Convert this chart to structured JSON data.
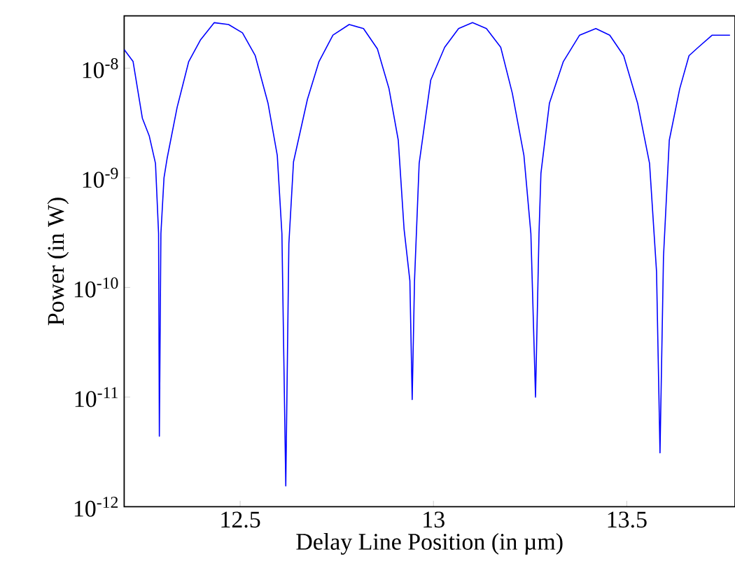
{
  "chart_data": {
    "type": "line",
    "xlabel": "Delay Line Position (in µm)",
    "ylabel": "Power (in W)",
    "log": "y",
    "grid": false,
    "marker": "none",
    "line_style": "solid",
    "xlim": [
      12.2,
      13.78
    ],
    "ylim": [
      1e-12,
      3e-08
    ],
    "xticks": [
      12.5,
      13,
      13.5
    ],
    "yticks": [
      {
        "value": 1e-12,
        "label": "10$^{-12}$"
      },
      {
        "value": 1e-11,
        "label": "10$^{-11}$"
      },
      {
        "value": 1e-10,
        "label": "10$^{-10}$"
      },
      {
        "value": 1e-09,
        "label": "10$^{-9}$"
      },
      {
        "value": 1e-08,
        "label": "10$^{-8}$"
      }
    ],
    "x": [
      12.2,
      12.223,
      12.247,
      12.265,
      12.281,
      12.289,
      12.291,
      12.295,
      12.303,
      12.311,
      12.337,
      12.367,
      12.397,
      12.433,
      12.47,
      12.506,
      12.539,
      12.572,
      12.596,
      12.608,
      12.618,
      12.626,
      12.638,
      12.674,
      12.704,
      12.74,
      12.782,
      12.819,
      12.855,
      12.885,
      12.909,
      12.924,
      12.939,
      12.945,
      12.951,
      12.963,
      12.993,
      13.029,
      13.065,
      13.101,
      13.137,
      13.174,
      13.204,
      13.234,
      13.252,
      13.264,
      13.273,
      13.278,
      13.3,
      13.336,
      13.378,
      13.42,
      13.456,
      13.492,
      13.528,
      13.559,
      13.577,
      13.586,
      13.595,
      13.61,
      13.637,
      13.661,
      13.685,
      13.721,
      13.767
    ],
    "series": [
      {
        "color": "#0000ff",
        "values": [
          1.48e-08,
          1.15e-08,
          3.5e-09,
          2.4e-09,
          1.35e-09,
          3.1e-10,
          4.4e-12,
          3.1e-10,
          1e-09,
          1.5e-09,
          4.4e-09,
          1.15e-08,
          1.8e-08,
          2.6e-08,
          2.5e-08,
          2.1e-08,
          1.3e-08,
          4.8e-09,
          1.6e-09,
          3.1e-10,
          1.55e-12,
          2.5e-10,
          1.4e-09,
          5.2e-09,
          1.15e-08,
          2e-08,
          2.5e-08,
          2.3e-08,
          1.5e-08,
          6.5e-09,
          2.2e-09,
          3.4e-10,
          1.15e-10,
          9.5e-12,
          1.15e-10,
          1.35e-09,
          7.8e-09,
          1.55e-08,
          2.3e-08,
          2.6e-08,
          2.3e-08,
          1.55e-08,
          5.9e-09,
          1.6e-09,
          3.1e-10,
          1e-11,
          3.1e-10,
          1.1e-09,
          4.8e-09,
          1.15e-08,
          2e-08,
          2.3e-08,
          2e-08,
          1.3e-08,
          4.8e-09,
          1.35e-09,
          1.4e-10,
          3.1e-12,
          1.9e-10,
          2.2e-09,
          6.5e-09,
          1.3e-08,
          1.55e-08,
          2e-08,
          2e-08
        ]
      }
    ]
  }
}
